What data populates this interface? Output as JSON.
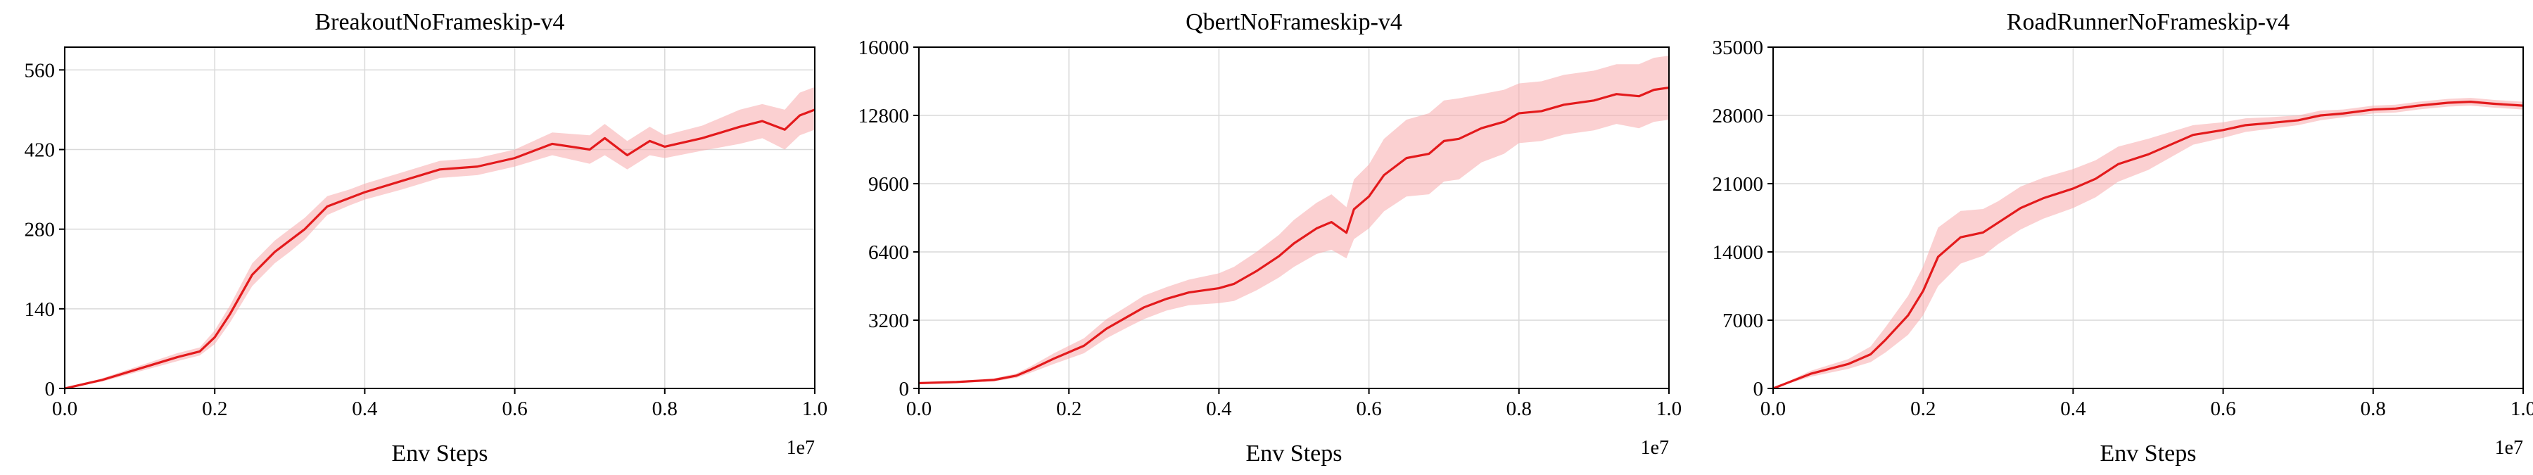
{
  "figure": {
    "line_color": "#e31a1c",
    "band_color": "#f7a9ab"
  },
  "chart_data": [
    {
      "type": "line",
      "title": "BreakoutNoFrameskip-v4",
      "xlabel": "Env Steps",
      "x_offset_label": "1e7",
      "xlim": [
        0,
        1.0
      ],
      "ylim": [
        0,
        600
      ],
      "xticks": [
        "0.0",
        "0.2",
        "0.4",
        "0.6",
        "0.8",
        "1.0"
      ],
      "yticks": [
        "0",
        "140",
        "280",
        "420",
        "560"
      ],
      "grid": true,
      "series": [
        {
          "x": [
            0,
            0.05,
            0.1,
            0.15,
            0.18,
            0.2,
            0.22,
            0.25,
            0.28,
            0.3,
            0.32,
            0.35,
            0.38,
            0.4,
            0.45,
            0.5,
            0.55,
            0.6,
            0.65,
            0.7,
            0.72,
            0.75,
            0.78,
            0.8,
            0.85,
            0.9,
            0.93,
            0.96,
            0.98,
            1.0
          ],
          "values": [
            0,
            15,
            35,
            55,
            65,
            90,
            130,
            200,
            240,
            260,
            280,
            320,
            335,
            345,
            365,
            385,
            390,
            405,
            430,
            420,
            440,
            410,
            435,
            425,
            440,
            460,
            470,
            455,
            480,
            490
          ],
          "lower": [
            0,
            12,
            30,
            48,
            58,
            78,
            115,
            180,
            220,
            240,
            262,
            305,
            322,
            332,
            350,
            370,
            375,
            390,
            410,
            395,
            410,
            385,
            410,
            405,
            418,
            430,
            440,
            420,
            445,
            455
          ],
          "upper": [
            0,
            18,
            40,
            62,
            72,
            102,
            145,
            220,
            260,
            280,
            300,
            338,
            350,
            360,
            380,
            400,
            405,
            420,
            450,
            445,
            465,
            435,
            460,
            445,
            462,
            490,
            500,
            490,
            520,
            530
          ]
        }
      ]
    },
    {
      "type": "line",
      "title": "QbertNoFrameskip-v4",
      "xlabel": "Env Steps",
      "x_offset_label": "1e7",
      "xlim": [
        0,
        1.0
      ],
      "ylim": [
        0,
        16000
      ],
      "xticks": [
        "0.0",
        "0.2",
        "0.4",
        "0.6",
        "0.8",
        "1.0"
      ],
      "yticks": [
        "0",
        "3200",
        "6400",
        "9600",
        "12800",
        "16000"
      ],
      "grid": true,
      "series": [
        {
          "x": [
            0,
            0.05,
            0.1,
            0.13,
            0.15,
            0.18,
            0.2,
            0.22,
            0.25,
            0.28,
            0.3,
            0.33,
            0.36,
            0.4,
            0.42,
            0.45,
            0.48,
            0.5,
            0.53,
            0.55,
            0.57,
            0.58,
            0.6,
            0.62,
            0.65,
            0.68,
            0.7,
            0.72,
            0.75,
            0.78,
            0.8,
            0.83,
            0.86,
            0.9,
            0.93,
            0.96,
            0.98,
            1.0
          ],
          "values": [
            250,
            300,
            400,
            600,
            900,
            1400,
            1700,
            2000,
            2800,
            3400,
            3800,
            4200,
            4500,
            4700,
            4900,
            5500,
            6200,
            6800,
            7500,
            7800,
            7300,
            8400,
            9000,
            10000,
            10800,
            11000,
            11600,
            11700,
            12200,
            12500,
            12900,
            13000,
            13300,
            13500,
            13800,
            13700,
            14000,
            14100
          ],
          "lower": [
            200,
            250,
            330,
            500,
            750,
            1150,
            1400,
            1650,
            2350,
            2900,
            3250,
            3650,
            3900,
            4000,
            4100,
            4600,
            5200,
            5700,
            6300,
            6500,
            6100,
            7000,
            7500,
            8300,
            9000,
            9100,
            9700,
            9800,
            10600,
            11000,
            11500,
            11600,
            11900,
            12100,
            12400,
            12200,
            12500,
            12600
          ],
          "upper": [
            300,
            350,
            470,
            700,
            1050,
            1650,
            2000,
            2350,
            3250,
            3900,
            4350,
            4750,
            5100,
            5400,
            5700,
            6400,
            7200,
            7900,
            8700,
            9100,
            8500,
            9800,
            10500,
            11700,
            12600,
            12900,
            13500,
            13600,
            13800,
            14000,
            14300,
            14400,
            14700,
            14900,
            15200,
            15200,
            15500,
            15600
          ]
        }
      ]
    },
    {
      "type": "line",
      "title": "RoadRunnerNoFrameskip-v4",
      "xlabel": "Env Steps",
      "x_offset_label": "1e7",
      "xlim": [
        0,
        1.0
      ],
      "ylim": [
        0,
        35000
      ],
      "xticks": [
        "0.0",
        "0.2",
        "0.4",
        "0.6",
        "0.8",
        "1.0"
      ],
      "yticks": [
        "0",
        "7000",
        "14000",
        "21000",
        "28000",
        "35000"
      ],
      "grid": true,
      "series": [
        {
          "x": [
            0,
            0.05,
            0.1,
            0.13,
            0.15,
            0.18,
            0.2,
            0.22,
            0.25,
            0.28,
            0.3,
            0.33,
            0.36,
            0.4,
            0.43,
            0.46,
            0.5,
            0.53,
            0.56,
            0.6,
            0.63,
            0.66,
            0.7,
            0.73,
            0.76,
            0.8,
            0.83,
            0.86,
            0.9,
            0.93,
            0.96,
            1.0
          ],
          "values": [
            0,
            1500,
            2500,
            3500,
            5000,
            7500,
            10000,
            13500,
            15500,
            16000,
            17000,
            18500,
            19500,
            20500,
            21500,
            23000,
            24000,
            25000,
            26000,
            26500,
            27000,
            27200,
            27500,
            28000,
            28200,
            28600,
            28700,
            29000,
            29300,
            29400,
            29200,
            29000
          ],
          "lower": [
            0,
            1200,
            2000,
            2700,
            3700,
            5500,
            7500,
            10500,
            12800,
            13600,
            14800,
            16300,
            17400,
            18500,
            19600,
            21200,
            22400,
            23700,
            25000,
            25700,
            26300,
            26600,
            27000,
            27500,
            27800,
            28200,
            28300,
            28600,
            28900,
            29000,
            28800,
            28600
          ],
          "upper": [
            0,
            1800,
            3000,
            4300,
            6300,
            9500,
            12500,
            16500,
            18200,
            18400,
            19200,
            20700,
            21600,
            22500,
            23400,
            24800,
            25600,
            26300,
            27000,
            27300,
            27700,
            27800,
            28000,
            28500,
            28600,
            29000,
            29100,
            29400,
            29700,
            29800,
            29600,
            29400
          ]
        }
      ]
    }
  ]
}
